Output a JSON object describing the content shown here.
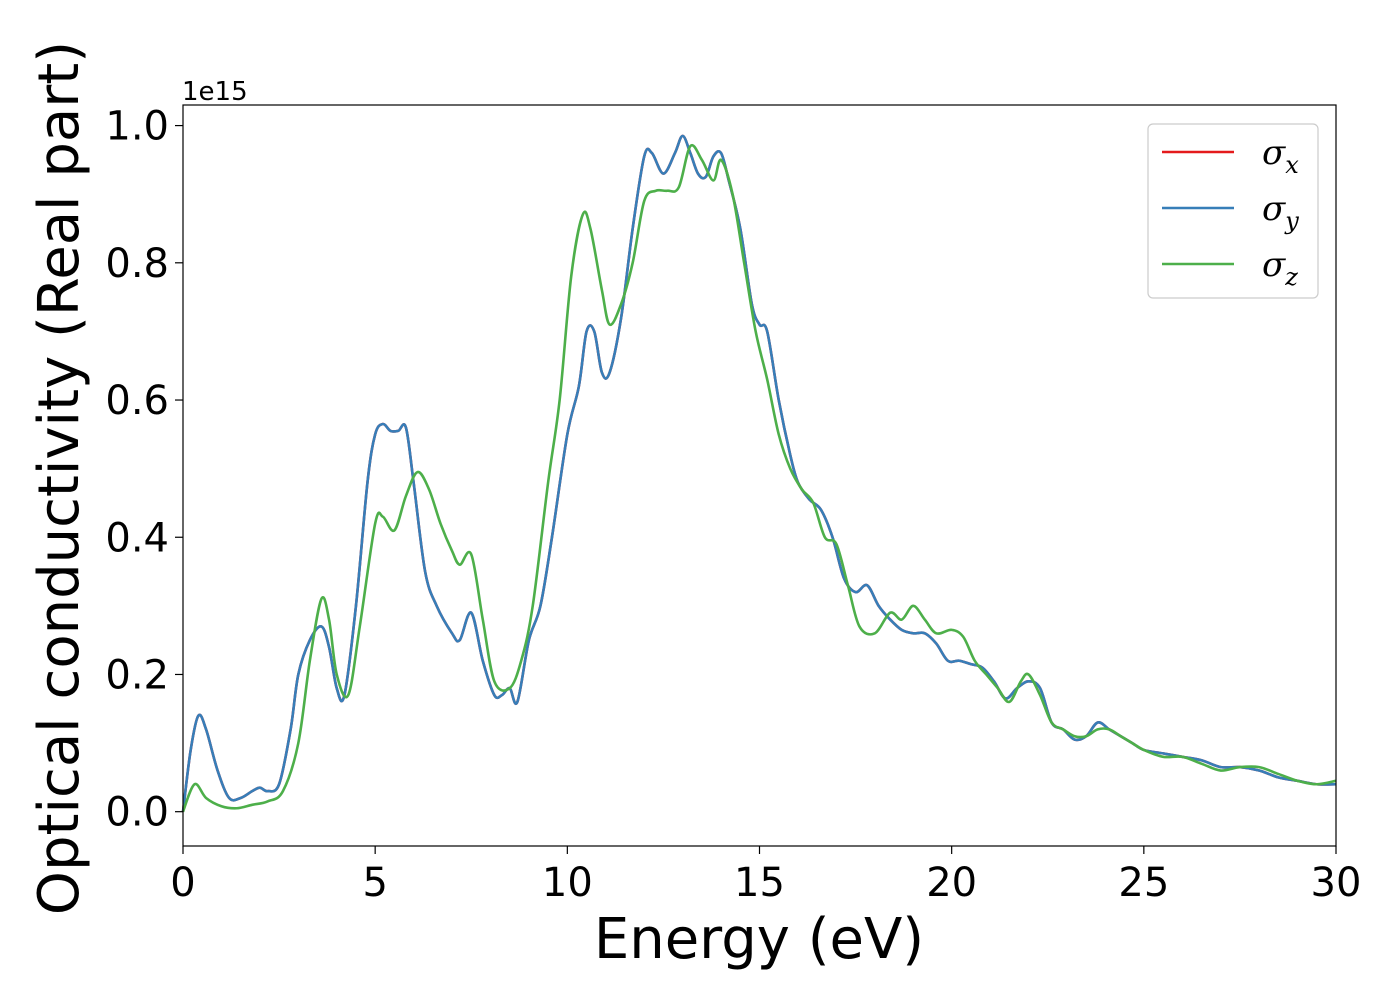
{
  "chart_data": {
    "type": "line",
    "xlabel": "Energy (eV)",
    "ylabel": "Optical conductivity (Real part)",
    "y_offset_label": "1e15",
    "xlim": [
      0,
      30
    ],
    "ylim": [
      -0.05,
      1.03
    ],
    "xticks": [
      0,
      5,
      10,
      15,
      20,
      25,
      30
    ],
    "yticks": [
      0.0,
      0.2,
      0.4,
      0.6,
      0.8,
      1.0
    ],
    "xtick_labels": [
      "0",
      "5",
      "10",
      "15",
      "20",
      "25",
      "30"
    ],
    "ytick_labels": [
      "0.0",
      "0.2",
      "0.4",
      "0.6",
      "0.8",
      "1.0"
    ],
    "grid": false,
    "legend_position": "top-right",
    "series": [
      {
        "name": "σx",
        "symbol": "σ",
        "subscript": "x",
        "color": "#e41a1c",
        "x": [
          0,
          0.2,
          0.4,
          0.6,
          0.9,
          1.2,
          1.5,
          1.8,
          2.0,
          2.2,
          2.5,
          2.8,
          3.0,
          3.3,
          3.6,
          3.8,
          4.0,
          4.2,
          4.5,
          4.8,
          5.0,
          5.2,
          5.4,
          5.6,
          5.8,
          6.0,
          6.3,
          6.6,
          7.0,
          7.2,
          7.5,
          7.8,
          8.1,
          8.3,
          8.5,
          8.7,
          9.0,
          9.3,
          9.6,
          10.0,
          10.3,
          10.5,
          10.7,
          10.9,
          11.1,
          11.4,
          11.7,
          12.0,
          12.2,
          12.5,
          12.8,
          13.0,
          13.2,
          13.4,
          13.6,
          13.8,
          14.0,
          14.2,
          14.5,
          14.8,
          15.0,
          15.2,
          15.5,
          15.8,
          16.0,
          16.3,
          16.6,
          16.9,
          17.2,
          17.5,
          17.8,
          18.1,
          18.4,
          18.7,
          19.0,
          19.3,
          19.6,
          19.9,
          20.2,
          20.5,
          20.8,
          21.1,
          21.4,
          21.7,
          22.0,
          22.3,
          22.6,
          22.9,
          23.2,
          23.5,
          23.8,
          24.1,
          24.4,
          24.7,
          25.0,
          25.5,
          26.0,
          26.5,
          27.0,
          27.5,
          28.0,
          28.5,
          29.0,
          29.5,
          30.0
        ],
        "values": [
          0.0,
          0.09,
          0.14,
          0.12,
          0.06,
          0.02,
          0.02,
          0.03,
          0.035,
          0.03,
          0.04,
          0.12,
          0.2,
          0.25,
          0.27,
          0.24,
          0.18,
          0.17,
          0.3,
          0.48,
          0.55,
          0.565,
          0.555,
          0.555,
          0.56,
          0.48,
          0.35,
          0.3,
          0.26,
          0.25,
          0.29,
          0.22,
          0.17,
          0.17,
          0.18,
          0.16,
          0.25,
          0.3,
          0.4,
          0.55,
          0.62,
          0.7,
          0.7,
          0.64,
          0.64,
          0.72,
          0.85,
          0.955,
          0.96,
          0.93,
          0.96,
          0.985,
          0.96,
          0.93,
          0.925,
          0.955,
          0.96,
          0.92,
          0.85,
          0.74,
          0.71,
          0.7,
          0.6,
          0.52,
          0.48,
          0.455,
          0.44,
          0.4,
          0.34,
          0.32,
          0.33,
          0.3,
          0.28,
          0.265,
          0.26,
          0.26,
          0.245,
          0.22,
          0.22,
          0.215,
          0.21,
          0.19,
          0.165,
          0.18,
          0.19,
          0.18,
          0.13,
          0.12,
          0.105,
          0.11,
          0.13,
          0.12,
          0.11,
          0.1,
          0.09,
          0.085,
          0.08,
          0.075,
          0.065,
          0.065,
          0.06,
          0.05,
          0.045,
          0.04,
          0.04
        ]
      },
      {
        "name": "σy",
        "symbol": "σ",
        "subscript": "y",
        "color": "#377eb8",
        "x": [
          0,
          0.2,
          0.4,
          0.6,
          0.9,
          1.2,
          1.5,
          1.8,
          2.0,
          2.2,
          2.5,
          2.8,
          3.0,
          3.3,
          3.6,
          3.8,
          4.0,
          4.2,
          4.5,
          4.8,
          5.0,
          5.2,
          5.4,
          5.6,
          5.8,
          6.0,
          6.3,
          6.6,
          7.0,
          7.2,
          7.5,
          7.8,
          8.1,
          8.3,
          8.5,
          8.7,
          9.0,
          9.3,
          9.6,
          10.0,
          10.3,
          10.5,
          10.7,
          10.9,
          11.1,
          11.4,
          11.7,
          12.0,
          12.2,
          12.5,
          12.8,
          13.0,
          13.2,
          13.4,
          13.6,
          13.8,
          14.0,
          14.2,
          14.5,
          14.8,
          15.0,
          15.2,
          15.5,
          15.8,
          16.0,
          16.3,
          16.6,
          16.9,
          17.2,
          17.5,
          17.8,
          18.1,
          18.4,
          18.7,
          19.0,
          19.3,
          19.6,
          19.9,
          20.2,
          20.5,
          20.8,
          21.1,
          21.4,
          21.7,
          22.0,
          22.3,
          22.6,
          22.9,
          23.2,
          23.5,
          23.8,
          24.1,
          24.4,
          24.7,
          25.0,
          25.5,
          26.0,
          26.5,
          27.0,
          27.5,
          28.0,
          28.5,
          29.0,
          29.5,
          30.0
        ],
        "values": [
          0.0,
          0.09,
          0.14,
          0.12,
          0.06,
          0.02,
          0.02,
          0.03,
          0.035,
          0.03,
          0.04,
          0.12,
          0.2,
          0.25,
          0.27,
          0.24,
          0.18,
          0.17,
          0.3,
          0.48,
          0.55,
          0.565,
          0.555,
          0.555,
          0.56,
          0.48,
          0.35,
          0.3,
          0.26,
          0.25,
          0.29,
          0.22,
          0.17,
          0.17,
          0.18,
          0.16,
          0.25,
          0.3,
          0.4,
          0.55,
          0.62,
          0.7,
          0.7,
          0.64,
          0.64,
          0.72,
          0.85,
          0.955,
          0.96,
          0.93,
          0.96,
          0.985,
          0.96,
          0.93,
          0.925,
          0.955,
          0.96,
          0.92,
          0.85,
          0.74,
          0.71,
          0.7,
          0.6,
          0.52,
          0.48,
          0.455,
          0.44,
          0.4,
          0.34,
          0.32,
          0.33,
          0.3,
          0.28,
          0.265,
          0.26,
          0.26,
          0.245,
          0.22,
          0.22,
          0.215,
          0.21,
          0.19,
          0.165,
          0.18,
          0.19,
          0.18,
          0.13,
          0.12,
          0.105,
          0.11,
          0.13,
          0.12,
          0.11,
          0.1,
          0.09,
          0.085,
          0.08,
          0.075,
          0.065,
          0.065,
          0.06,
          0.05,
          0.045,
          0.04,
          0.04
        ]
      },
      {
        "name": "σz",
        "symbol": "σ",
        "subscript": "z",
        "color": "#4daf4a",
        "x": [
          0,
          0.3,
          0.6,
          1.0,
          1.4,
          1.8,
          2.2,
          2.6,
          3.0,
          3.3,
          3.6,
          3.8,
          4.0,
          4.3,
          4.6,
          5.0,
          5.2,
          5.5,
          5.8,
          6.1,
          6.4,
          6.7,
          7.0,
          7.2,
          7.5,
          7.8,
          8.1,
          8.5,
          8.8,
          9.1,
          9.5,
          9.8,
          10.1,
          10.4,
          10.6,
          10.9,
          11.1,
          11.4,
          11.7,
          12.0,
          12.3,
          12.6,
          12.9,
          13.2,
          13.5,
          13.8,
          14.0,
          14.3,
          14.6,
          14.9,
          15.2,
          15.5,
          15.8,
          16.1,
          16.4,
          16.7,
          17.0,
          17.3,
          17.6,
          18.0,
          18.4,
          18.7,
          19.0,
          19.3,
          19.6,
          20.0,
          20.3,
          20.6,
          20.9,
          21.2,
          21.5,
          21.8,
          22.0,
          22.3,
          22.6,
          22.9,
          23.2,
          23.5,
          23.8,
          24.1,
          24.4,
          24.7,
          25.0,
          25.5,
          26.0,
          26.5,
          27.0,
          27.5,
          28.0,
          28.5,
          29.0,
          29.5,
          30.0
        ],
        "values": [
          0.0,
          0.04,
          0.02,
          0.008,
          0.005,
          0.01,
          0.015,
          0.03,
          0.1,
          0.22,
          0.31,
          0.28,
          0.2,
          0.17,
          0.27,
          0.42,
          0.43,
          0.41,
          0.46,
          0.495,
          0.47,
          0.42,
          0.38,
          0.36,
          0.375,
          0.28,
          0.19,
          0.18,
          0.22,
          0.3,
          0.48,
          0.6,
          0.78,
          0.87,
          0.85,
          0.76,
          0.71,
          0.74,
          0.8,
          0.89,
          0.905,
          0.905,
          0.91,
          0.97,
          0.95,
          0.92,
          0.95,
          0.9,
          0.8,
          0.7,
          0.63,
          0.55,
          0.5,
          0.47,
          0.45,
          0.4,
          0.39,
          0.33,
          0.27,
          0.26,
          0.29,
          0.28,
          0.3,
          0.28,
          0.26,
          0.265,
          0.255,
          0.22,
          0.2,
          0.18,
          0.16,
          0.19,
          0.2,
          0.17,
          0.13,
          0.12,
          0.11,
          0.11,
          0.12,
          0.12,
          0.11,
          0.1,
          0.09,
          0.08,
          0.08,
          0.07,
          0.06,
          0.065,
          0.065,
          0.055,
          0.045,
          0.04,
          0.045
        ]
      }
    ]
  }
}
